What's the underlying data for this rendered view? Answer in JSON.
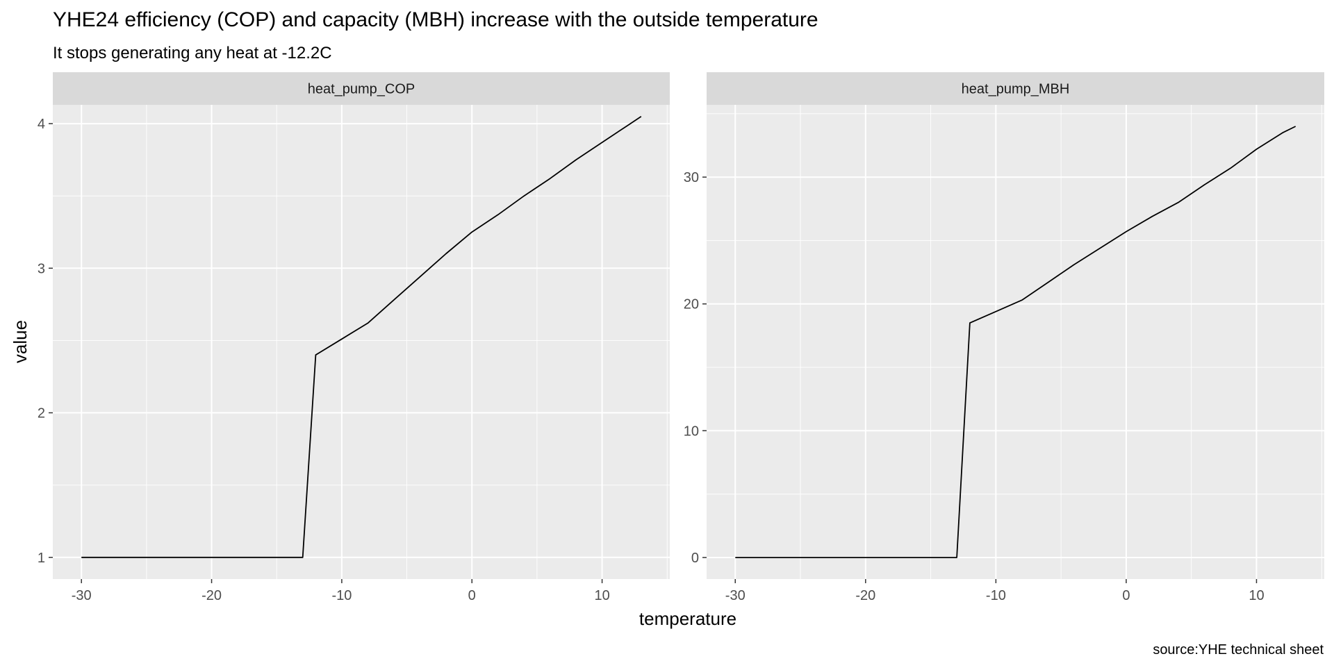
{
  "chart_data": {
    "type": "line",
    "title": "YHE24 efficiency (COP) and capacity (MBH) increase with the outside temperature",
    "subtitle": "It stops generating any heat at -12.2C",
    "xlabel": "temperature",
    "ylabel": "value",
    "caption": "source:YHE technical sheet",
    "grid": true,
    "facets": [
      {
        "label": "heat_pump_COP",
        "xlim": [
          -32.2,
          15.2
        ],
        "ylim": [
          0.85,
          4.13
        ],
        "x_ticks": [
          -30,
          -20,
          -10,
          0,
          10
        ],
        "x_tick_labels": [
          "-30",
          "-20",
          "-10",
          "0",
          "10"
        ],
        "y_ticks": [
          1,
          2,
          3,
          4
        ],
        "y_tick_labels": [
          "1",
          "2",
          "3",
          "4"
        ],
        "x": [
          -30,
          -13,
          -12,
          -10,
          -8,
          -6,
          -4,
          -2,
          0,
          2,
          4,
          6,
          8,
          10,
          12,
          13
        ],
        "y": [
          1.0,
          1.0,
          2.4,
          2.51,
          2.62,
          2.78,
          2.94,
          3.1,
          3.25,
          3.37,
          3.5,
          3.62,
          3.75,
          3.87,
          3.99,
          4.05
        ]
      },
      {
        "label": "heat_pump_MBH",
        "xlim": [
          -32.2,
          15.2
        ],
        "ylim": [
          -1.7,
          35.7
        ],
        "x_ticks": [
          -30,
          -20,
          -10,
          0,
          10
        ],
        "x_tick_labels": [
          "-30",
          "-20",
          "-10",
          "0",
          "10"
        ],
        "y_ticks": [
          0,
          10,
          20,
          30
        ],
        "y_tick_labels": [
          "0",
          "10",
          "20",
          "30"
        ],
        "x": [
          -30,
          -13,
          -12,
          -10,
          -8,
          -6,
          -4,
          -2,
          0,
          2,
          4,
          6,
          8,
          10,
          12,
          13
        ],
        "y": [
          0.0,
          0.0,
          18.5,
          19.4,
          20.3,
          21.7,
          23.1,
          24.4,
          25.7,
          26.9,
          28.0,
          29.4,
          30.7,
          32.2,
          33.5,
          34.0
        ]
      }
    ]
  }
}
